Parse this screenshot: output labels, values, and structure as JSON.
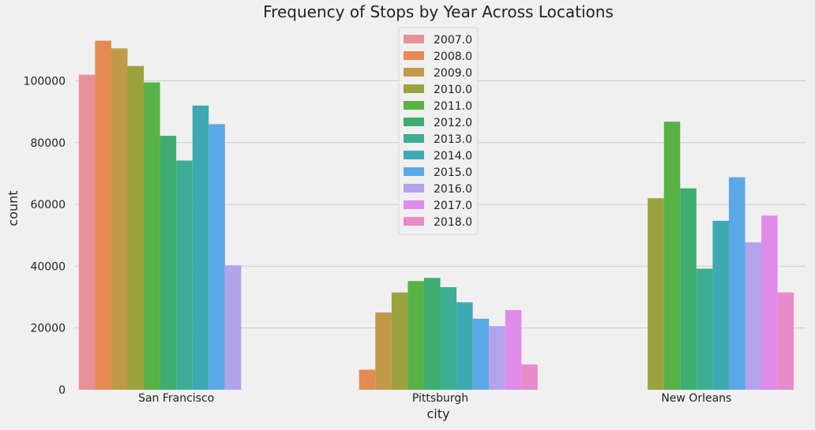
{
  "chart_data": {
    "type": "bar",
    "title": "Frequency of Stops by Year Across Locations",
    "xlabel": "city",
    "ylabel": "count",
    "categories": [
      "San Francisco",
      "Pittsburgh",
      "New Orleans"
    ],
    "ylim": [
      0,
      118000
    ],
    "yticks": [
      0,
      20000,
      40000,
      60000,
      80000,
      100000
    ],
    "grid": true,
    "legend_position": "top-center",
    "series": [
      {
        "name": "2007.0",
        "color": "#e8919b",
        "values": [
          102000,
          null,
          null
        ]
      },
      {
        "name": "2008.0",
        "color": "#e48a52",
        "values": [
          113000,
          6500,
          null
        ]
      },
      {
        "name": "2009.0",
        "color": "#c09a48",
        "values": [
          110500,
          25000,
          null
        ]
      },
      {
        "name": "2010.0",
        "color": "#9aa33e",
        "values": [
          104800,
          31500,
          62000
        ]
      },
      {
        "name": "2011.0",
        "color": "#59b245",
        "values": [
          99500,
          35200,
          86800
        ]
      },
      {
        "name": "2012.0",
        "color": "#3ead6f",
        "values": [
          82200,
          36200,
          65200
        ]
      },
      {
        "name": "2013.0",
        "color": "#3ead95",
        "values": [
          74200,
          33200,
          39200
        ]
      },
      {
        "name": "2014.0",
        "color": "#3ea9b3",
        "values": [
          92000,
          28300,
          54700
        ]
      },
      {
        "name": "2015.0",
        "color": "#5aa9e6",
        "values": [
          86000,
          23000,
          68800
        ]
      },
      {
        "name": "2016.0",
        "color": "#b2a3ec",
        "values": [
          40300,
          20600,
          47700
        ]
      },
      {
        "name": "2017.0",
        "color": "#e08aec",
        "values": [
          null,
          25800,
          56400
        ]
      },
      {
        "name": "2018.0",
        "color": "#e98bc9",
        "values": [
          null,
          8200,
          31500
        ]
      }
    ]
  }
}
